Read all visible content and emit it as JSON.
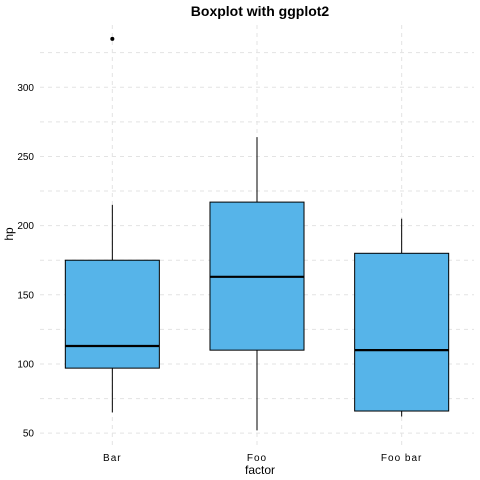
{
  "chart_data": {
    "type": "boxplot",
    "title": "Boxplot with ggplot2",
    "xlabel": "factor",
    "ylabel": "hp",
    "categories": [
      "Bar",
      "Foo",
      "Foo bar"
    ],
    "boxes": [
      {
        "category": "Bar",
        "min": 65,
        "q1": 97,
        "median": 113,
        "q3": 175,
        "max": 215,
        "outliers": [
          335
        ]
      },
      {
        "category": "Foo",
        "min": 52,
        "q1": 110,
        "median": 163,
        "q3": 217,
        "max": 264,
        "outliers": []
      },
      {
        "category": "Foo bar",
        "min": 62,
        "q1": 66,
        "median": 110,
        "q3": 180,
        "max": 205,
        "outliers": []
      }
    ],
    "ylim": [
      40,
      345
    ],
    "yticks": [
      50,
      100,
      150,
      200,
      250,
      300
    ],
    "grid": true,
    "fill_color": "#56B4E9",
    "border_color": "#000000"
  }
}
